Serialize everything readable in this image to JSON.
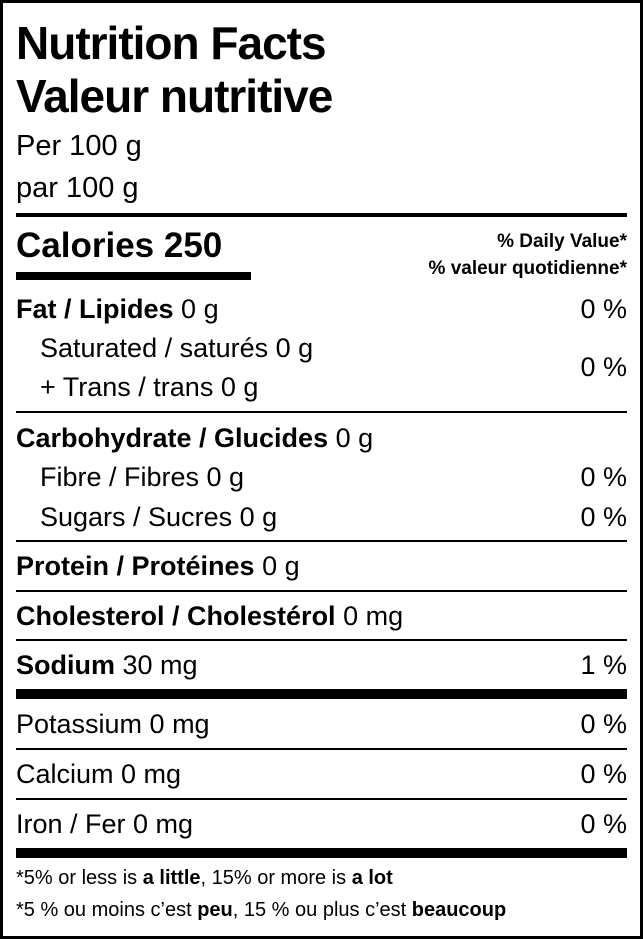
{
  "title_en": "Nutrition Facts",
  "title_fr": "Valeur nutritive",
  "serving_en": "Per 100 g",
  "serving_fr": "par 100 g",
  "calories": {
    "label": "Calories",
    "value": "250"
  },
  "daily_value_en": "% Daily Value*",
  "daily_value_fr": "% valeur quotidienne*",
  "fat": {
    "label": "Fat / Lipides",
    "amount": "0 g",
    "dv": "0 %"
  },
  "saturated": {
    "label": "Saturated / saturés 0 g"
  },
  "trans": {
    "label": "+ Trans / trans 0 g"
  },
  "sat_trans_dv": "0 %",
  "carb": {
    "label": "Carbohydrate / Glucides",
    "amount": "0 g"
  },
  "fibre": {
    "label": "Fibre / Fibres 0 g",
    "dv": "0 %"
  },
  "sugars": {
    "label": "Sugars / Sucres 0 g",
    "dv": "0 %"
  },
  "protein": {
    "label": "Protein / Protéines",
    "amount": "0 g"
  },
  "cholesterol": {
    "label": "Cholesterol / Cholestérol",
    "amount": "0 mg"
  },
  "sodium": {
    "label": "Sodium",
    "amount": "30 mg",
    "dv": "1 %"
  },
  "potassium": {
    "label": "Potassium 0 mg",
    "dv": "0 %"
  },
  "calcium": {
    "label": "Calcium 0 mg",
    "dv": "0 %"
  },
  "iron": {
    "label": "Iron / Fer 0 mg",
    "dv": "0 %"
  },
  "footnote_en": {
    "a": "*5% or less is ",
    "b": "a little",
    ",c": "",
    "c": ", 15% or more is ",
    "d": "a lot"
  },
  "footnote_fr": {
    "a": "*5 % ou moins c’est ",
    "b": "peu",
    "c": ", 15 % ou plus c’est ",
    "d": "beaucoup"
  }
}
